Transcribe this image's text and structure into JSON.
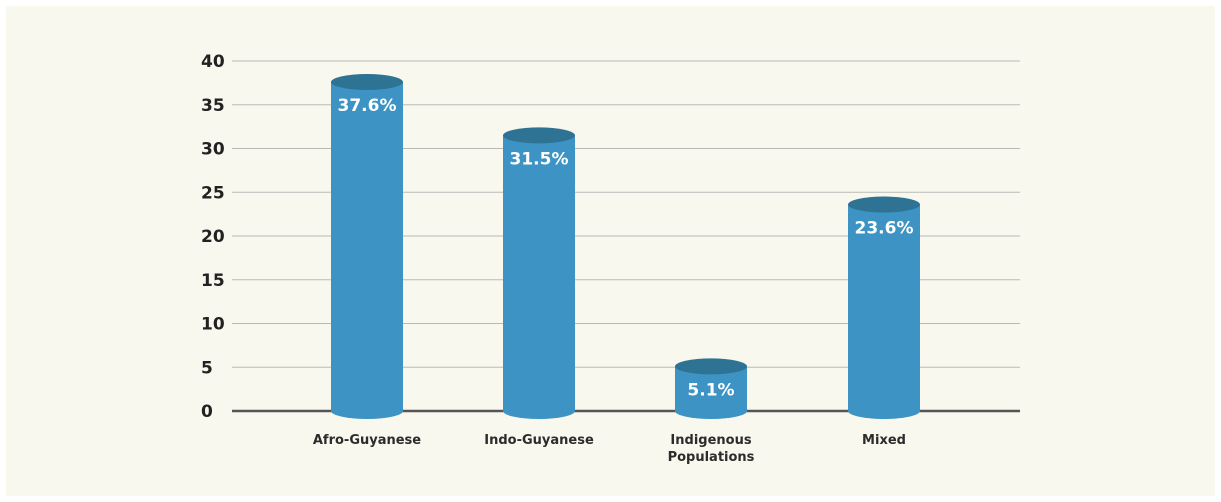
{
  "chart_data": {
    "type": "bar",
    "categories": [
      [
        "Afro-Guyanese"
      ],
      [
        "Indo-Guyanese"
      ],
      [
        "Indigenous",
        "Populations"
      ],
      [
        "Mixed"
      ]
    ],
    "values": [
      37.6,
      31.5,
      5.1,
      23.6
    ],
    "data_labels": [
      "37.6%",
      "31.5%",
      "5.1%",
      "23.6%"
    ],
    "yticks": [
      0,
      5,
      10,
      15,
      20,
      25,
      30,
      35,
      40
    ],
    "ylim": [
      0,
      40
    ],
    "title": "",
    "xlabel": "",
    "ylabel": "",
    "grid": true,
    "legend": "none",
    "colors": {
      "bar_body": "#3d93c3",
      "bar_top": "#2f7394",
      "grid": "#b9b9b9",
      "axis": "#555555",
      "background": "#f8f8ee"
    }
  }
}
